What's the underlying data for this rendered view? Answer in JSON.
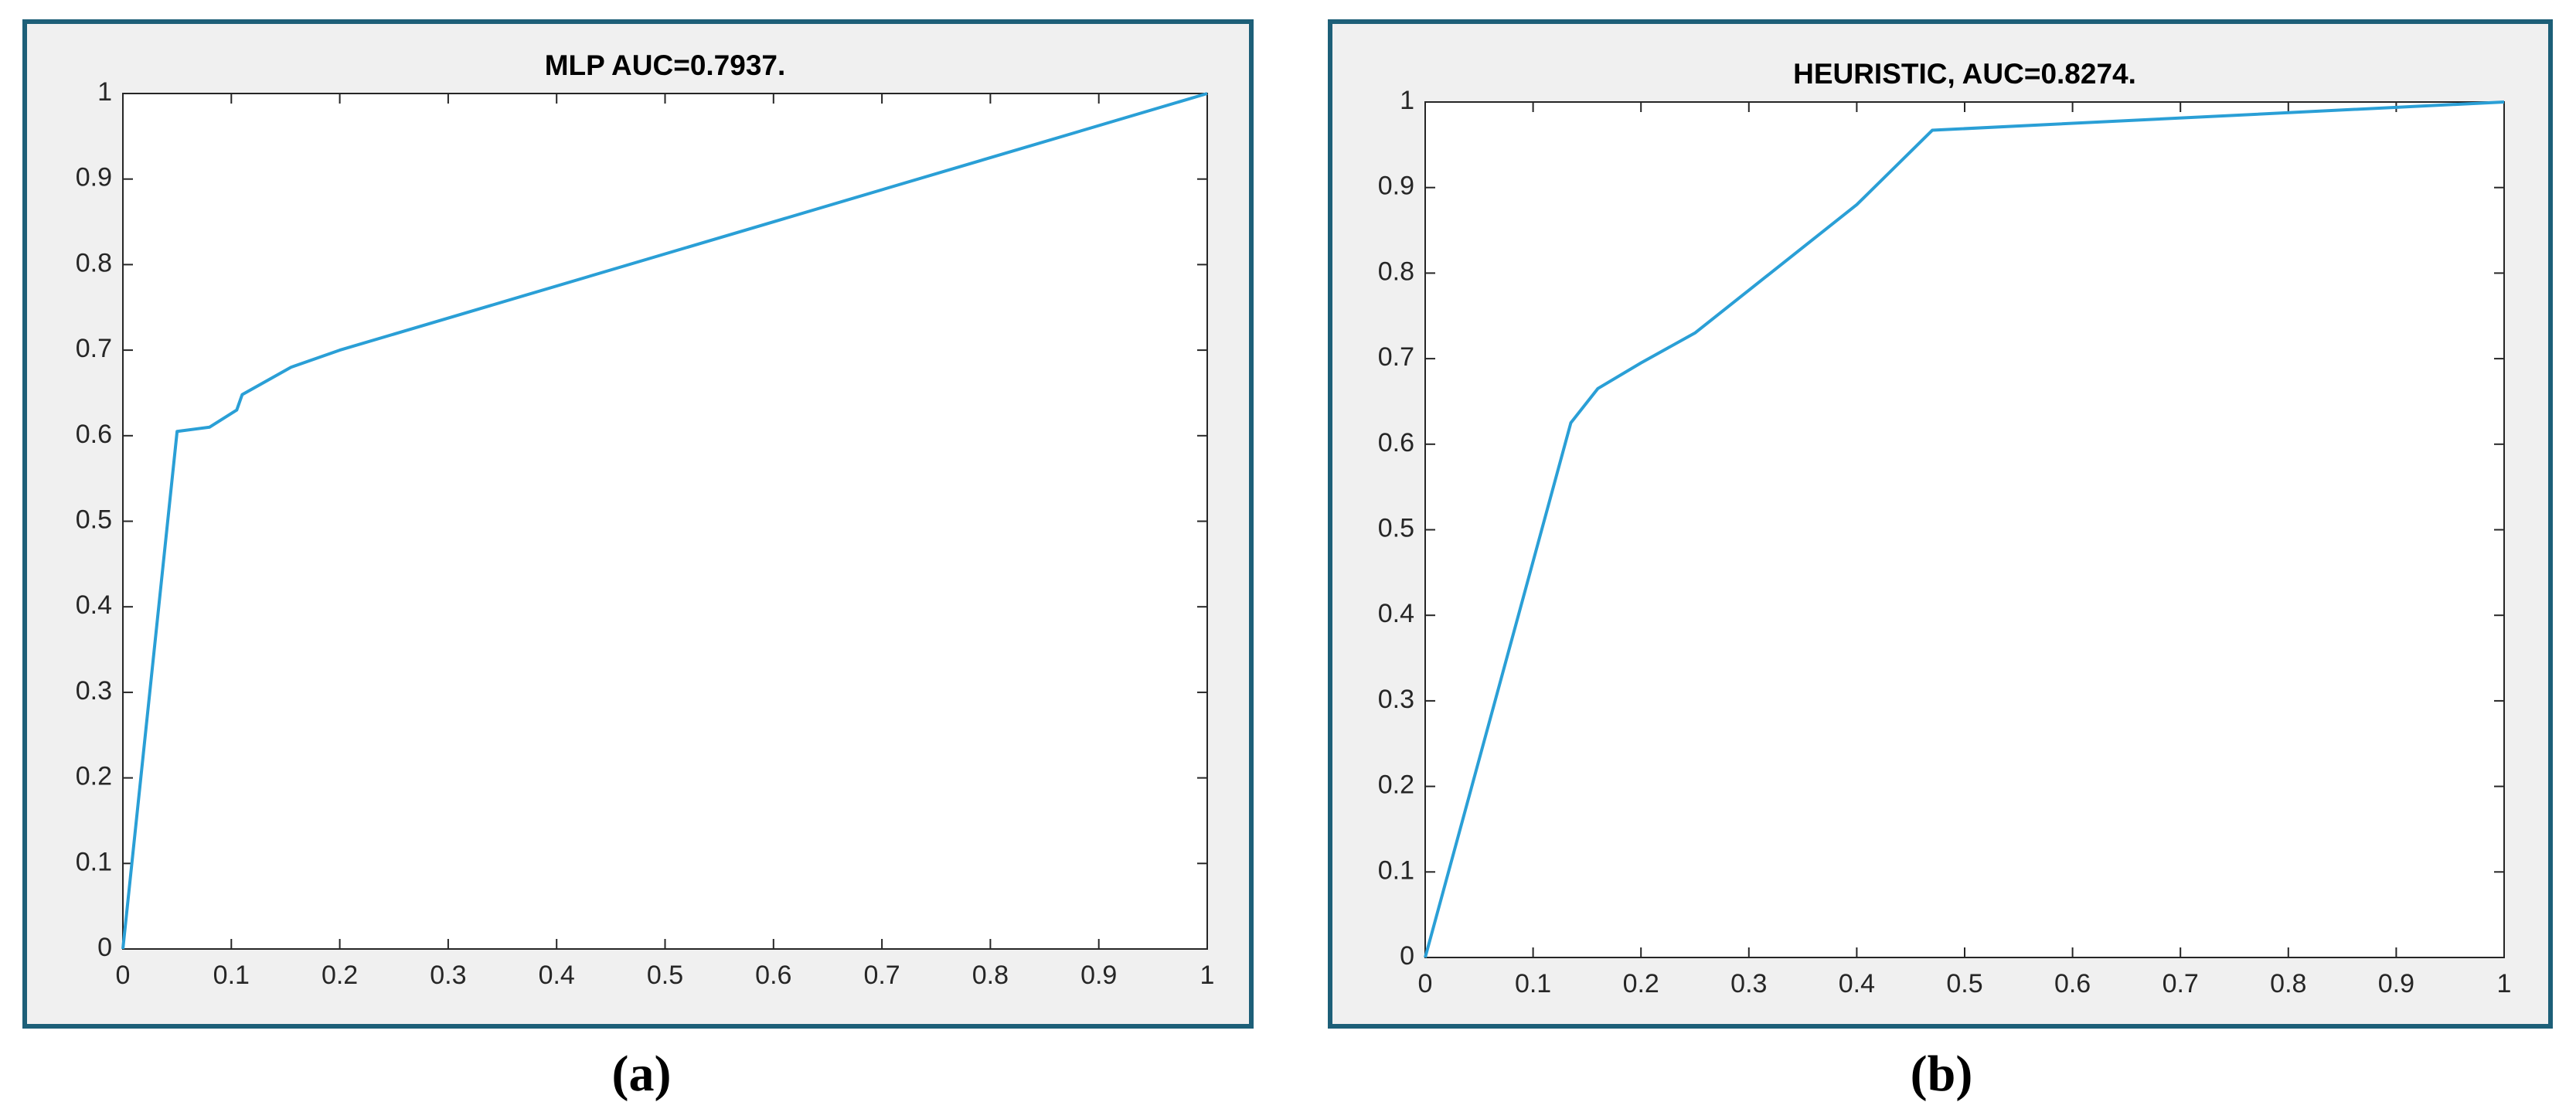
{
  "chart_data": [
    {
      "type": "line",
      "title": "MLP AUC=0.7937.",
      "caption": "(a)",
      "x": [
        0,
        0.05,
        0.08,
        0.105,
        0.11,
        0.155,
        0.2,
        1
      ],
      "values": [
        0,
        0.605,
        0.61,
        0.63,
        0.648,
        0.68,
        0.7,
        1
      ],
      "color": "#2a9fd6",
      "xlim": [
        0,
        1
      ],
      "ylim": [
        0,
        1
      ],
      "xticks": [
        0,
        0.1,
        0.2,
        0.3,
        0.4,
        0.5,
        0.6,
        0.7,
        0.8,
        0.9,
        1
      ],
      "yticks": [
        0,
        0.1,
        0.2,
        0.3,
        0.4,
        0.5,
        0.6,
        0.7,
        0.8,
        0.9,
        1
      ],
      "grid": false
    },
    {
      "type": "line",
      "title": "HEURISTIC, AUC=0.8274.",
      "caption": "(b)",
      "x": [
        0,
        0.135,
        0.16,
        0.2,
        0.25,
        0.3,
        0.4,
        0.47,
        1
      ],
      "values": [
        0,
        0.625,
        0.665,
        0.695,
        0.73,
        0.78,
        0.88,
        0.967,
        1
      ],
      "color": "#2a9fd6",
      "xlim": [
        0,
        1
      ],
      "ylim": [
        0,
        1
      ],
      "xticks": [
        0,
        0.1,
        0.2,
        0.3,
        0.4,
        0.5,
        0.6,
        0.7,
        0.8,
        0.9,
        1
      ],
      "yticks": [
        0,
        0.1,
        0.2,
        0.3,
        0.4,
        0.5,
        0.6,
        0.7,
        0.8,
        0.9,
        1
      ],
      "grid": false
    }
  ]
}
